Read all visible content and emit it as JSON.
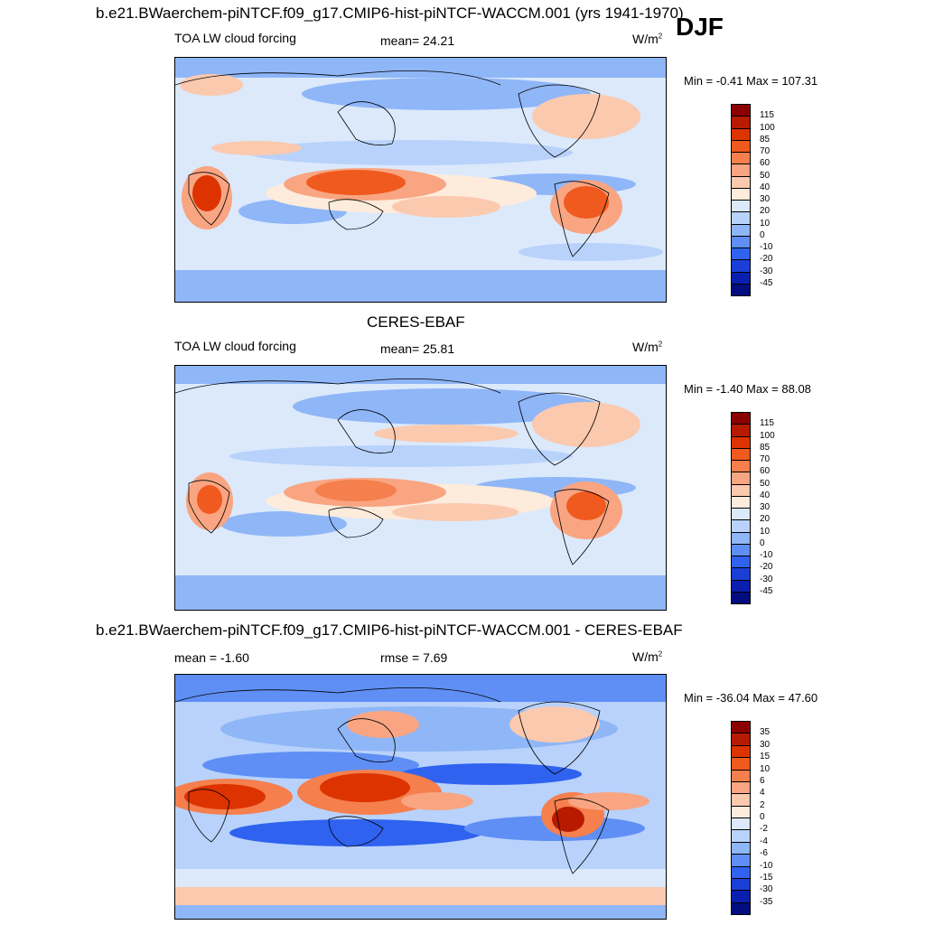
{
  "season": "DJF",
  "panel1": {
    "title": "b.e21.BWaerchem-piNTCF.f09_g17.CMIP6-hist-piNTCF-WACCM.001 (yrs 1941-1970)",
    "left": "TOA LW cloud forcing",
    "center": "mean=  24.21",
    "units_base": "W/m",
    "units_exp": "2",
    "minmax": "Min =  -0.41 Max = 107.31"
  },
  "panel2": {
    "title": "CERES-EBAF",
    "left": "TOA LW cloud forcing",
    "center": "mean=  25.81",
    "units_base": "W/m",
    "units_exp": "2",
    "minmax": "Min =  -1.40 Max =  88.08"
  },
  "panel3": {
    "title": "b.e21.BWaerchem-piNTCF.f09_g17.CMIP6-hist-piNTCF-WACCM.001 - CERES-EBAF",
    "left": "mean =  -1.60",
    "center": "rmse =   7.69",
    "units_base": "W/m",
    "units_exp": "2",
    "minmax": "Min = -36.04 Max =  47.60"
  },
  "colorbar_abs": {
    "labels": [
      "115",
      "100",
      "85",
      "70",
      "60",
      "50",
      "40",
      "30",
      "20",
      "10",
      "0",
      "-10",
      "-20",
      "-30",
      "-45"
    ],
    "colors": [
      "#8b0000",
      "#b81a00",
      "#dd3300",
      "#f05a1e",
      "#f57f4d",
      "#f9a582",
      "#fbc9ae",
      "#fdebdc",
      "#dbe9fb",
      "#b8d2fb",
      "#8fb6f7",
      "#5f8ff5",
      "#2f62ee",
      "#1a3fd8",
      "#0a1fb0",
      "#020d80"
    ]
  },
  "colorbar_diff": {
    "labels": [
      "35",
      "30",
      "15",
      "10",
      "6",
      "4",
      "2",
      "0",
      "-2",
      "-4",
      "-6",
      "-10",
      "-15",
      "-30",
      "-35"
    ],
    "colors": [
      "#8b0000",
      "#b81a00",
      "#dd3300",
      "#f05a1e",
      "#f57f4d",
      "#f9a582",
      "#fbc9ae",
      "#fdebdc",
      "#dbe9fb",
      "#b8d2fb",
      "#8fb6f7",
      "#5f8ff5",
      "#2f62ee",
      "#1a3fd8",
      "#0a1fb0",
      "#020d80"
    ]
  }
}
